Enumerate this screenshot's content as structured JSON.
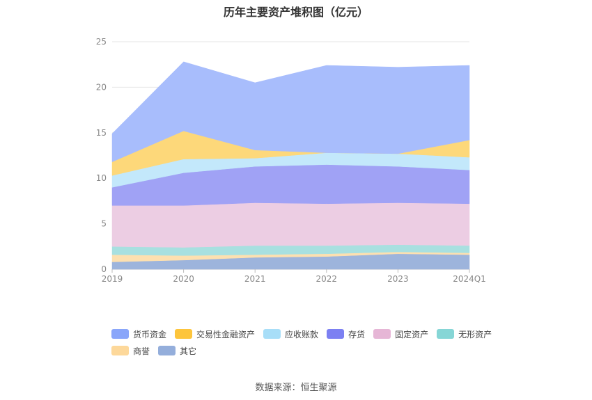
{
  "chart_data": {
    "type": "area",
    "stacked": true,
    "title": "历年主要资产堆积图（亿元）",
    "source": "数据来源：恒生聚源",
    "categories": [
      "2019",
      "2020",
      "2021",
      "2022",
      "2023",
      "2024Q1"
    ],
    "ylim": [
      0,
      25
    ],
    "yticks": [
      0,
      5,
      10,
      15,
      20,
      25
    ],
    "legend_position": "bottom",
    "grid": true,
    "series": [
      {
        "name": "其它",
        "color": "#9db4dc",
        "values": [
          0.8,
          1.0,
          1.3,
          1.4,
          1.7,
          1.6
        ]
      },
      {
        "name": "商誉",
        "color": "#fde0b0",
        "values": [
          0.8,
          0.5,
          0.3,
          0.3,
          0.2,
          0.2
        ]
      },
      {
        "name": "无形资产",
        "color": "#a8e0e0",
        "values": [
          0.9,
          0.9,
          1.0,
          0.9,
          0.8,
          0.8
        ]
      },
      {
        "name": "固定资产",
        "color": "#eccde3",
        "values": [
          4.5,
          4.6,
          4.7,
          4.6,
          4.6,
          4.6
        ]
      },
      {
        "name": "存货",
        "color": "#a0a2f5",
        "values": [
          2.0,
          3.6,
          4.0,
          4.3,
          4.0,
          3.7
        ]
      },
      {
        "name": "应收账款",
        "color": "#c3e8fb",
        "values": [
          1.3,
          1.5,
          0.9,
          1.3,
          1.4,
          1.4
        ]
      },
      {
        "name": "交易性金融资产",
        "color": "#fdd87a",
        "values": [
          1.5,
          3.1,
          0.9,
          0.0,
          0.0,
          1.9
        ]
      },
      {
        "name": "货币资金",
        "color": "#a8bdfc",
        "values": [
          3.1,
          7.6,
          7.4,
          9.6,
          9.5,
          8.2
        ]
      }
    ],
    "legend_order": [
      "货币资金",
      "交易性金融资产",
      "应收账款",
      "存货",
      "固定资产",
      "无形资产",
      "商誉",
      "其它"
    ],
    "legend_colors": {
      "货币资金": "#8aa6fa",
      "交易性金融资产": "#fdc53c",
      "应收账款": "#a8def8",
      "存货": "#7c80f2",
      "固定资产": "#e6b6d6",
      "无形资产": "#86d6d6",
      "商誉": "#fdd89a",
      "其它": "#94aedb"
    }
  }
}
